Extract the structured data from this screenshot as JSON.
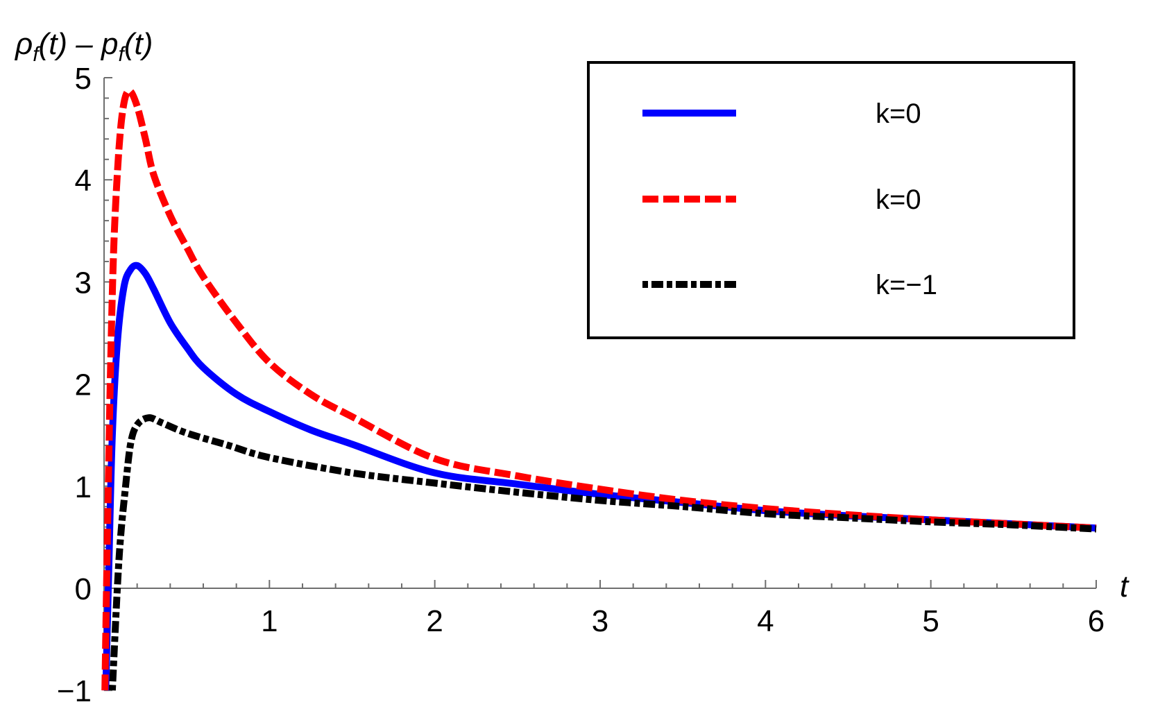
{
  "chart_data": {
    "type": "line",
    "title": "",
    "xlabel": "t",
    "ylabel": "ρ_f(t) − p_f(t)",
    "xlim": [
      0,
      6
    ],
    "ylim": [
      -1,
      5
    ],
    "grid": false,
    "legend_position": "upper right",
    "x_ticks": [
      "1",
      "2",
      "3",
      "4",
      "5",
      "6"
    ],
    "y_ticks": [
      "−1",
      "0",
      "1",
      "2",
      "3",
      "4",
      "5"
    ],
    "series": [
      {
        "name": "k=0",
        "color": "#0000ff",
        "style": "solid",
        "x": [
          0.01,
          0.03,
          0.05,
          0.08,
          0.12,
          0.16,
          0.2,
          0.25,
          0.3,
          0.4,
          0.5,
          0.6,
          0.8,
          1.0,
          1.25,
          1.5,
          2.0,
          2.5,
          3.0,
          3.5,
          4.0,
          4.5,
          5.0,
          5.5,
          6.0
        ],
        "values": [
          -1.0,
          0.3,
          1.5,
          2.4,
          2.95,
          3.12,
          3.16,
          3.08,
          2.93,
          2.6,
          2.36,
          2.16,
          1.9,
          1.73,
          1.55,
          1.41,
          1.13,
          1.02,
          0.92,
          0.84,
          0.76,
          0.71,
          0.67,
          0.63,
          0.59
        ]
      },
      {
        "name": "k=0",
        "color": "#ff0000",
        "style": "dashed",
        "x": [
          0.005,
          0.02,
          0.04,
          0.06,
          0.09,
          0.12,
          0.155,
          0.2,
          0.25,
          0.3,
          0.4,
          0.5,
          0.6,
          0.8,
          1.0,
          1.25,
          1.5,
          2.0,
          2.5,
          3.0,
          3.5,
          4.0,
          4.5,
          5.0,
          5.5,
          6.0
        ],
        "values": [
          -1.0,
          0.5,
          2.2,
          3.4,
          4.3,
          4.75,
          4.87,
          4.72,
          4.4,
          4.05,
          3.65,
          3.34,
          3.05,
          2.6,
          2.21,
          1.9,
          1.68,
          1.27,
          1.1,
          0.97,
          0.86,
          0.78,
          0.72,
          0.67,
          0.63,
          0.59
        ]
      },
      {
        "name": "k=−1",
        "color": "#000000",
        "style": "dotdashed",
        "x": [
          0.05,
          0.08,
          0.1,
          0.125,
          0.16,
          0.2,
          0.27,
          0.35,
          0.5,
          0.75,
          1.0,
          1.5,
          2.0,
          2.5,
          3.0,
          3.5,
          4.0,
          4.5,
          5.0,
          5.5,
          6.0
        ],
        "values": [
          -1.0,
          0.0,
          0.5,
          0.92,
          1.41,
          1.6,
          1.67,
          1.62,
          1.52,
          1.4,
          1.28,
          1.13,
          1.03,
          0.94,
          0.86,
          0.8,
          0.73,
          0.69,
          0.65,
          0.62,
          0.58
        ]
      }
    ]
  },
  "axes": {
    "x_label": "t",
    "y_label_parts": [
      "ρ",
      "f",
      "(t) – ",
      "p",
      "f",
      "(t)"
    ]
  },
  "legend": {
    "items": [
      {
        "label": "k=0",
        "color": "#0000ff"
      },
      {
        "label": "k=0",
        "color": "#ff0000"
      },
      {
        "label": "k=−1",
        "color": "#000000"
      }
    ]
  }
}
